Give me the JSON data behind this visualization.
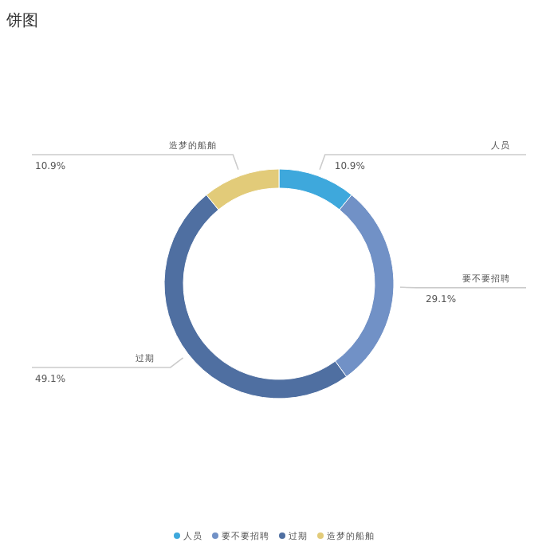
{
  "chart_data": {
    "type": "donut",
    "title": "饼图",
    "categories": [
      "人员",
      "要不要招聘",
      "过期",
      "造梦的船舶"
    ],
    "values": [
      10.9,
      29.1,
      49.1,
      10.9
    ],
    "colors": [
      "#3ea8dc",
      "#7191c6",
      "#4f6fa1",
      "#e2cb79"
    ],
    "value_labels": [
      "10.9%",
      "29.1%",
      "49.1%",
      "10.9%"
    ],
    "legend": "bottom"
  }
}
